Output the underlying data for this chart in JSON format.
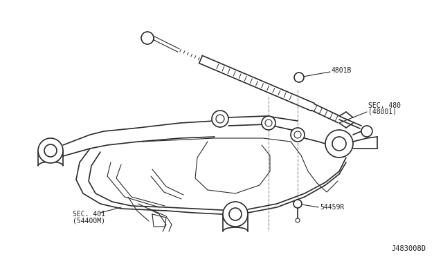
{
  "background_color": "#ffffff",
  "line_color": "#2a2a2a",
  "fig_width": 6.4,
  "fig_height": 3.72,
  "dpi": 100,
  "labels": {
    "4801B": "4801B",
    "SEC_480": "SEC. 480\n(48001)",
    "SEC_401": "SEC. 401\n(54400M)",
    "54459R": "54459R",
    "diagram_id": "J483008D"
  }
}
